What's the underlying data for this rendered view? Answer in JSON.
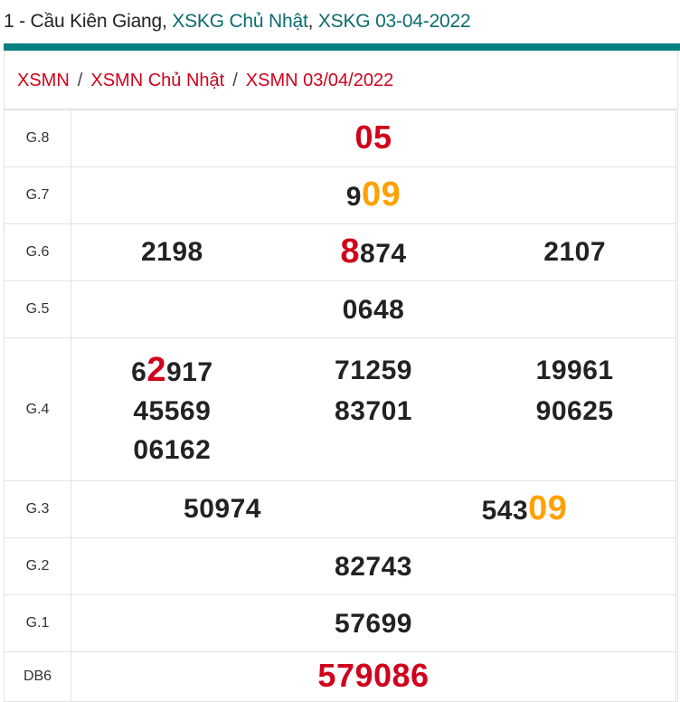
{
  "header": {
    "prefix": "1 - Cầu Kiên Giang, ",
    "link1": "XSKG Chủ Nhật",
    "sep": ", ",
    "link2": "XSKG 03-04-2022"
  },
  "colors": {
    "accent": "#087f80",
    "red": "#d0021b",
    "orange": "#ffa200"
  },
  "breadcrumb": [
    "XSMN",
    "XSMN Chủ Nhật",
    "XSMN 03/04/2022"
  ],
  "breadcrumb_separator": "/",
  "prizes": [
    {
      "label": "G.8",
      "cols": 1,
      "numbers": [
        [
          {
            "t": "05",
            "s": "bigred"
          }
        ]
      ]
    },
    {
      "label": "G.7",
      "cols": 1,
      "numbers": [
        [
          {
            "t": "9",
            "s": ""
          },
          {
            "t": "09",
            "s": "orange"
          }
        ]
      ]
    },
    {
      "label": "G.6",
      "cols": 3,
      "numbers": [
        [
          {
            "t": "2198",
            "s": ""
          }
        ],
        [
          {
            "t": "8",
            "s": "red"
          },
          {
            "t": "874",
            "s": ""
          }
        ],
        [
          {
            "t": "2107",
            "s": ""
          }
        ]
      ]
    },
    {
      "label": "G.5",
      "cols": 1,
      "numbers": [
        [
          {
            "t": "0648",
            "s": ""
          }
        ]
      ]
    },
    {
      "label": "G.4",
      "cols": 3,
      "numbers": [
        [
          {
            "t": "6",
            "s": ""
          },
          {
            "t": "2",
            "s": "red"
          },
          {
            "t": "917",
            "s": ""
          }
        ],
        [
          {
            "t": "71259",
            "s": ""
          }
        ],
        [
          {
            "t": "19961",
            "s": ""
          }
        ],
        [
          {
            "t": "45569",
            "s": ""
          }
        ],
        [
          {
            "t": "83701",
            "s": ""
          }
        ],
        [
          {
            "t": "90625",
            "s": ""
          }
        ],
        [
          {
            "t": "06162",
            "s": ""
          }
        ]
      ]
    },
    {
      "label": "G.3",
      "cols": 2,
      "numbers": [
        [
          {
            "t": "50974",
            "s": ""
          }
        ],
        [
          {
            "t": "543",
            "s": ""
          },
          {
            "t": "09",
            "s": "orange"
          }
        ]
      ]
    },
    {
      "label": "G.2",
      "cols": 1,
      "numbers": [
        [
          {
            "t": "82743",
            "s": ""
          }
        ]
      ]
    },
    {
      "label": "G.1",
      "cols": 1,
      "numbers": [
        [
          {
            "t": "57699",
            "s": ""
          }
        ]
      ]
    },
    {
      "label": "DB6",
      "cols": 1,
      "numbers": [
        [
          {
            "t": "579086",
            "s": "bigred"
          }
        ]
      ]
    }
  ]
}
